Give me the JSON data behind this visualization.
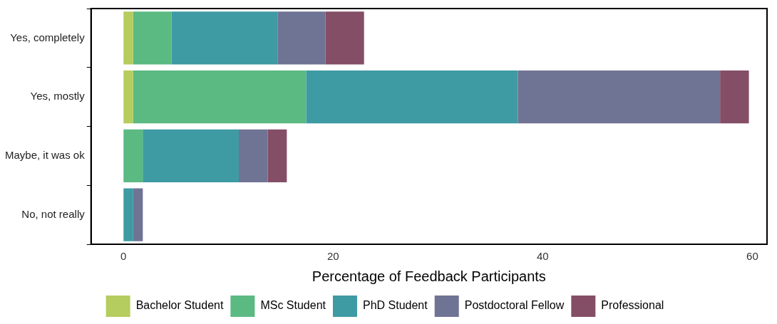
{
  "chart_data": {
    "type": "bar",
    "orientation": "horizontal",
    "stacked": true,
    "xlabel": "Percentage of Feedback Participants",
    "categories": [
      "Yes, completely",
      "Yes, mostly",
      "Maybe, it was ok",
      "No, not really"
    ],
    "series": [
      {
        "name": "Bachelor Student",
        "color": "#b5cc5e",
        "values": [
          0.92,
          0.92,
          null,
          null
        ]
      },
      {
        "name": "MSc Student",
        "color": "#5bb982",
        "values": [
          3.67,
          16.5,
          1.83,
          null
        ]
      },
      {
        "name": "PhD Student",
        "color": "#3e9aa3",
        "values": [
          10.1,
          20.2,
          9.17,
          0.92
        ]
      },
      {
        "name": "Postdoctoral Fellow",
        "color": "#6f7394",
        "values": [
          4.59,
          19.3,
          2.75,
          0.92
        ]
      },
      {
        "name": "Professional",
        "color": "#844e66",
        "values": [
          3.67,
          2.75,
          1.83,
          null
        ]
      }
    ],
    "xlim": [
      -3.1,
      61.4
    ],
    "xticks": [
      0,
      20,
      40,
      60
    ],
    "grid": false,
    "legend": "bottom"
  }
}
